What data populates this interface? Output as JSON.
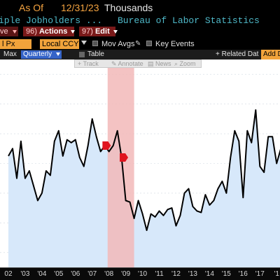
{
  "header": {
    "as_of_label": "As Of",
    "as_of_date": "12/31/23",
    "units": "Thousands"
  },
  "title_row": {
    "series_title": "iple Jobholders ...",
    "source": "Bureau of Labor Statistics"
  },
  "actions_row": {
    "left_partial": "ve",
    "actions_num": "96)",
    "actions_label": "Actions",
    "edit_num": "97)",
    "edit_label": "Edit"
  },
  "options_row": {
    "px_field": "l Px",
    "currency_field": "Local CCY",
    "mov_avgs_label": "Mov Avgs",
    "key_events_label": "Key Events"
  },
  "toolbar_row": {
    "max_label": "Max",
    "period_select": "Quarterly",
    "table_label": "Table",
    "related_label": "Related Dat",
    "add_label": "Add D"
  },
  "chart_tools": {
    "track": "Track",
    "annotate": "Annotate",
    "news": "News",
    "zoom": "Zoom"
  },
  "colors": {
    "accent_orange": "#f1a33b",
    "line": "#000000",
    "area_fill": "#d7e8fa",
    "recession_band": "#f2b8b8",
    "event_marker": "#e0141e",
    "title_cyan": "#4fb9c9"
  },
  "chart_data": {
    "type": "area",
    "x_ticks": [
      "02",
      "'03",
      "'04",
      "'05",
      "'06",
      "'07",
      "'08",
      "'09",
      "'10",
      "'11",
      "'12",
      "'13",
      "'14",
      "'15",
      "'16",
      "'17",
      "'1"
    ],
    "x_start": 2002.0,
    "points": [
      [
        2002.0,
        7550
      ],
      [
        2002.25,
        7600
      ],
      [
        2002.5,
        7400
      ],
      [
        2002.75,
        7650
      ],
      [
        2003.0,
        7400
      ],
      [
        2003.25,
        7450
      ],
      [
        2003.5,
        7350
      ],
      [
        2003.75,
        7250
      ],
      [
        2004.0,
        7300
      ],
      [
        2004.25,
        7450
      ],
      [
        2004.5,
        7420
      ],
      [
        2004.75,
        7650
      ],
      [
        2005.0,
        7720
      ],
      [
        2005.25,
        7550
      ],
      [
        2005.5,
        7660
      ],
      [
        2005.75,
        7640
      ],
      [
        2006.0,
        7660
      ],
      [
        2006.25,
        7540
      ],
      [
        2006.5,
        7480
      ],
      [
        2006.75,
        7620
      ],
      [
        2007.0,
        7800
      ],
      [
        2007.25,
        7680
      ],
      [
        2007.5,
        7580
      ],
      [
        2007.75,
        7620
      ],
      [
        2008.0,
        7580
      ],
      [
        2008.25,
        7620
      ],
      [
        2008.5,
        7720
      ],
      [
        2008.75,
        7540
      ],
      [
        2009.0,
        7250
      ],
      [
        2009.25,
        7240
      ],
      [
        2009.5,
        7130
      ],
      [
        2009.75,
        7250
      ],
      [
        2010.0,
        7160
      ],
      [
        2010.25,
        7050
      ],
      [
        2010.5,
        7160
      ],
      [
        2010.75,
        7140
      ],
      [
        2011.0,
        7180
      ],
      [
        2011.25,
        7150
      ],
      [
        2011.5,
        7190
      ],
      [
        2011.75,
        7200
      ],
      [
        2012.0,
        7080
      ],
      [
        2012.25,
        7150
      ],
      [
        2012.5,
        7300
      ],
      [
        2012.75,
        7330
      ],
      [
        2013.0,
        7210
      ],
      [
        2013.25,
        7180
      ],
      [
        2013.5,
        7170
      ],
      [
        2013.75,
        7290
      ],
      [
        2014.0,
        7220
      ],
      [
        2014.25,
        7250
      ],
      [
        2014.5,
        7330
      ],
      [
        2014.75,
        7380
      ],
      [
        2015.0,
        7300
      ],
      [
        2015.25,
        7540
      ],
      [
        2015.5,
        7720
      ],
      [
        2015.75,
        7650
      ],
      [
        2016.0,
        7270
      ],
      [
        2016.25,
        7720
      ],
      [
        2016.5,
        7640
      ],
      [
        2016.75,
        7860
      ],
      [
        2017.0,
        7480
      ],
      [
        2017.25,
        7440
      ],
      [
        2017.5,
        7680
      ],
      [
        2017.75,
        7680
      ],
      [
        2018.0,
        7500
      ],
      [
        2018.25,
        7600
      ]
    ],
    "recession_start": 2007.92,
    "recession_end": 2009.5,
    "event_markers": [
      2007.82,
      2008.85
    ],
    "ylim": [
      6800,
      8200
    ],
    "xlim": [
      2001.5,
      2018.2
    ]
  }
}
